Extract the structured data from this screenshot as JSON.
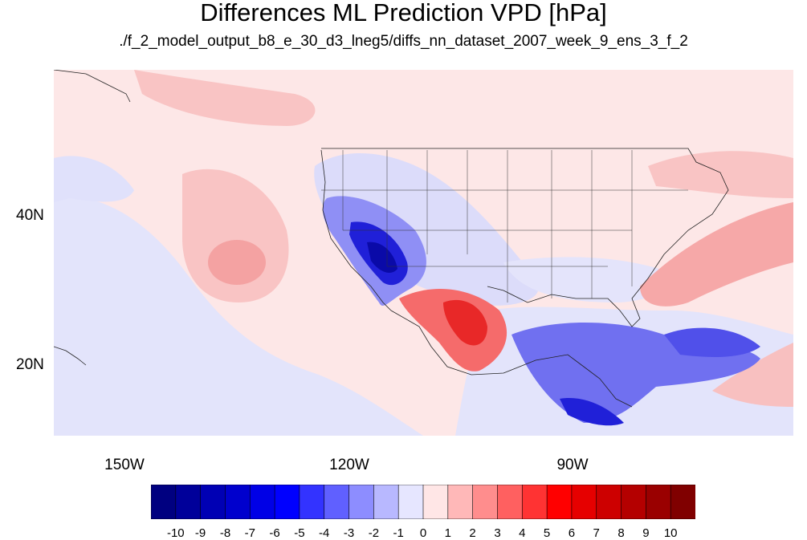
{
  "title": "Differences ML Prediction VPD [hPa]",
  "subtitle": "./f_2_model_output_b8_e_30_d3_lneg5/diffs_nn_dataset_2007_week_9_ens_3_f_2",
  "map": {
    "lon_range": [
      -160,
      -62
    ],
    "lat_range": [
      11,
      60
    ],
    "x_ticks": [
      {
        "lon": -150,
        "label": "150W"
      },
      {
        "lon": -120,
        "label": "120W"
      },
      {
        "lon": -90,
        "label": "90W"
      }
    ],
    "y_ticks": [
      {
        "lat": 40,
        "label": "40N"
      },
      {
        "lat": 20,
        "label": "20N"
      }
    ],
    "background_color": "#fde7e7"
  },
  "colorbar": {
    "labels": [
      "-10",
      "-9",
      "-8",
      "-7",
      "-6",
      "-5",
      "-4",
      "-3",
      "-2",
      "-1",
      "0",
      "1",
      "2",
      "3",
      "4",
      "5",
      "6",
      "7",
      "8",
      "9",
      "10"
    ],
    "colors": [
      "#000080",
      "#00009a",
      "#0000b4",
      "#0000cd",
      "#0000e6",
      "#0000ff",
      "#3333ff",
      "#6060ff",
      "#8d8dff",
      "#b8b8ff",
      "#e6e6ff",
      "#ffe6e6",
      "#ffb8b8",
      "#ff8d8d",
      "#ff6060",
      "#ff3333",
      "#ff0000",
      "#e60000",
      "#cd0000",
      "#b40000",
      "#9a0000",
      "#800000"
    ]
  }
}
